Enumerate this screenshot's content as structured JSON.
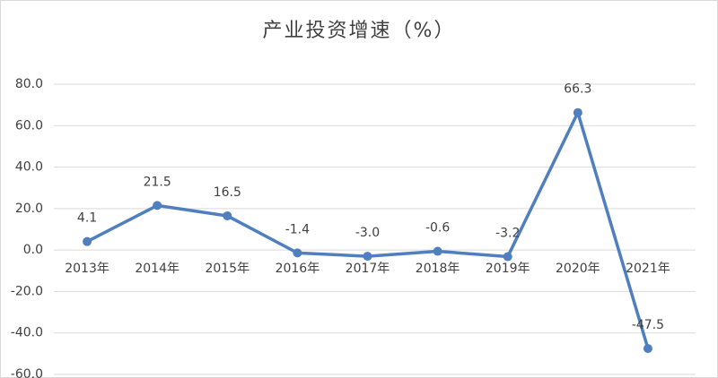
{
  "chart_data": {
    "type": "line",
    "title": "产业投资增速（%）",
    "categories": [
      "2013年",
      "2014年",
      "2015年",
      "2016年",
      "2017年",
      "2018年",
      "2019年",
      "2020年",
      "2021年"
    ],
    "series": [
      {
        "name": "产业投资增速",
        "color": "#4f7fbf",
        "values": [
          4.1,
          21.5,
          16.5,
          -1.4,
          -3.0,
          -0.6,
          -3.2,
          66.3,
          -47.5
        ],
        "value_labels": [
          "4.1",
          "21.5",
          "16.5",
          "-1.4",
          "-3.0",
          "-0.6",
          "-3.2",
          "66.3",
          "-47.5"
        ]
      }
    ],
    "ylim": [
      -60,
      80
    ],
    "yticks": [
      {
        "value": -60,
        "label": "-60.0"
      },
      {
        "value": -40,
        "label": "-40.0"
      },
      {
        "value": -20,
        "label": "-20.0"
      },
      {
        "value": 0,
        "label": "0.0"
      },
      {
        "value": 20,
        "label": "20.0"
      },
      {
        "value": 40,
        "label": "40.0"
      },
      {
        "value": 60,
        "label": "60.0"
      },
      {
        "value": 80,
        "label": "80.0"
      }
    ],
    "grid": true
  }
}
